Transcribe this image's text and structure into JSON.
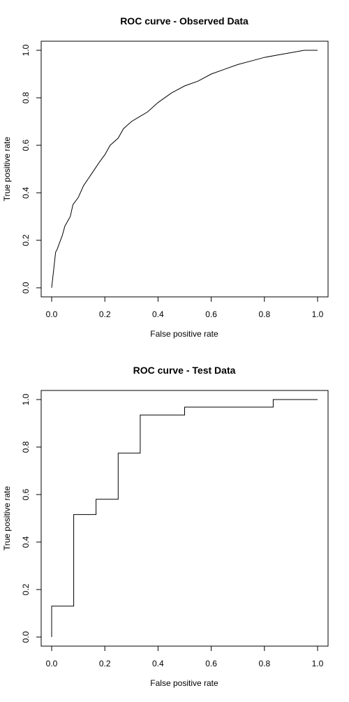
{
  "chart_data": [
    {
      "type": "line",
      "title": "ROC curve - Observed Data",
      "xlabel": "False positive rate",
      "ylabel": "True positive rate",
      "xlim": [
        0,
        1
      ],
      "ylim": [
        0,
        1
      ],
      "xticks": [
        "0.0",
        "0.2",
        "0.4",
        "0.6",
        "0.8",
        "1.0"
      ],
      "yticks": [
        "0.0",
        "0.2",
        "0.4",
        "0.6",
        "0.8",
        "1.0"
      ],
      "grid": false,
      "series": [
        {
          "x": [
            0,
            0.005,
            0.01,
            0.015,
            0.02,
            0.04,
            0.05,
            0.07,
            0.08,
            0.1,
            0.12,
            0.15,
            0.18,
            0.2,
            0.22,
            0.25,
            0.27,
            0.3,
            0.33,
            0.36,
            0.4,
            0.45,
            0.5,
            0.55,
            0.6,
            0.65,
            0.7,
            0.75,
            0.8,
            0.85,
            0.9,
            0.95,
            1.0
          ],
          "y": [
            0,
            0.05,
            0.1,
            0.15,
            0.16,
            0.22,
            0.26,
            0.3,
            0.35,
            0.38,
            0.43,
            0.48,
            0.53,
            0.56,
            0.6,
            0.63,
            0.67,
            0.7,
            0.72,
            0.74,
            0.78,
            0.82,
            0.85,
            0.87,
            0.9,
            0.92,
            0.94,
            0.955,
            0.97,
            0.98,
            0.99,
            1.0,
            1.0
          ]
        }
      ]
    },
    {
      "type": "line",
      "title": "ROC curve - Test Data",
      "xlabel": "False positive rate",
      "ylabel": "True positive rate",
      "xlim": [
        0,
        1
      ],
      "ylim": [
        0,
        1
      ],
      "xticks": [
        "0.0",
        "0.2",
        "0.4",
        "0.6",
        "0.8",
        "1.0"
      ],
      "yticks": [
        "0.0",
        "0.2",
        "0.4",
        "0.6",
        "0.8",
        "1.0"
      ],
      "grid": false,
      "series": [
        {
          "x": [
            0,
            0,
            0.083,
            0.083,
            0.167,
            0.167,
            0.25,
            0.25,
            0.333,
            0.333,
            0.5,
            0.5,
            0.833,
            0.833,
            1.0
          ],
          "y": [
            0,
            0.13,
            0.13,
            0.516,
            0.516,
            0.58,
            0.58,
            0.774,
            0.774,
            0.935,
            0.935,
            0.968,
            0.968,
            1.0,
            1.0
          ]
        }
      ]
    }
  ]
}
